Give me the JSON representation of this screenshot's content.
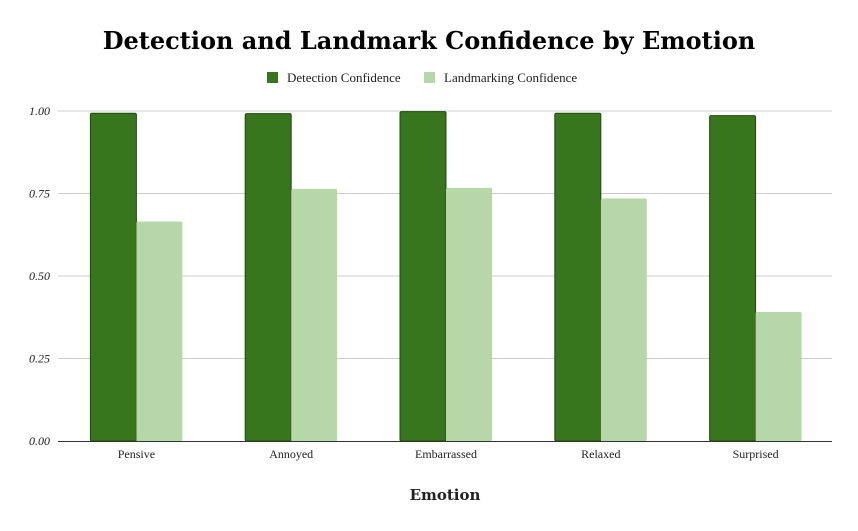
{
  "chart_data": {
    "type": "bar",
    "title": "Detection and Landmark Confidence by Emotion",
    "xlabel": "Emotion",
    "ylabel": "",
    "categories": [
      "Pensive",
      "Annoyed",
      "Embarrassed",
      "Relaxed",
      "Surprised"
    ],
    "series": [
      {
        "name": "Detection Confidence",
        "color": "#38761d",
        "values": [
          0.993,
          0.992,
          0.998,
          0.993,
          0.986
        ]
      },
      {
        "name": "Landmarking Confidence",
        "color": "#b6d7a8",
        "values": [
          0.665,
          0.764,
          0.767,
          0.735,
          0.391
        ]
      }
    ],
    "ylim": [
      0,
      1
    ],
    "yticks": [
      "0.00",
      "0.25",
      "0.50",
      "0.75",
      "1.00"
    ],
    "ytick_values": [
      0,
      0.25,
      0.5,
      0.75,
      1.0
    ],
    "grid": true,
    "legend_position": "top-center"
  }
}
